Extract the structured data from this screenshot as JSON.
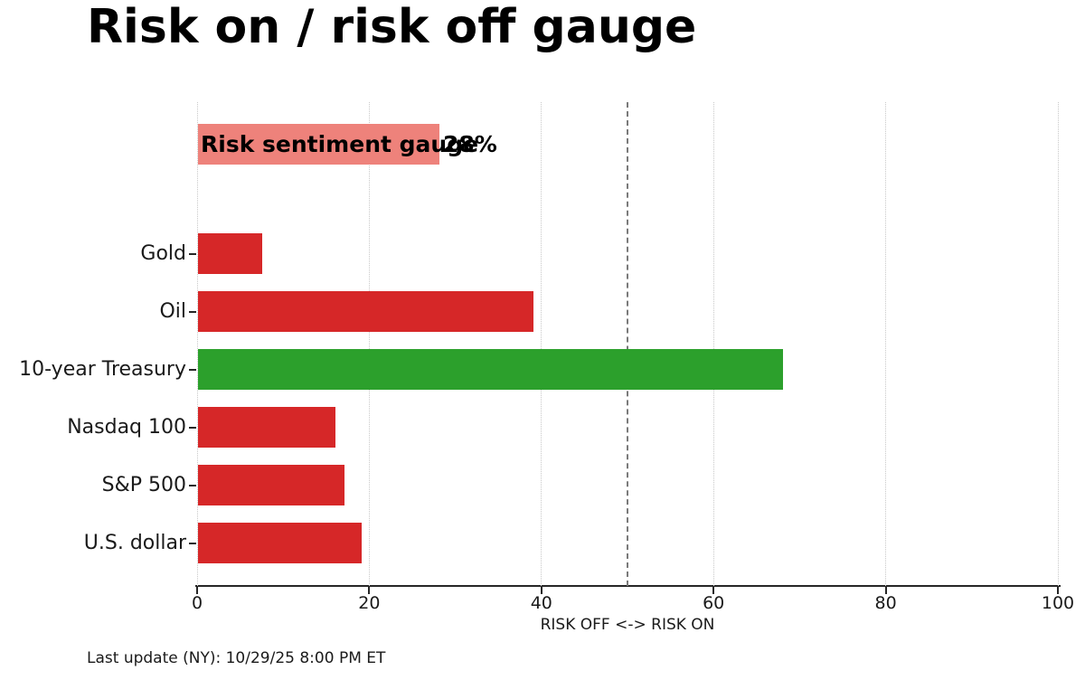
{
  "page": {
    "footer": "Last update (NY): 10/29/25 8:00 PM ET"
  },
  "chart_data": {
    "type": "bar",
    "orientation": "horizontal",
    "title": "Risk on / risk off gauge",
    "xlabel": "RISK OFF <-> RISK ON",
    "xlim": [
      0,
      100
    ],
    "x_ticks": [
      0,
      20,
      40,
      60,
      80,
      100
    ],
    "grid": "vertical dotted gridlines at each x tick",
    "legend": null,
    "reference_line": {
      "x": 50,
      "style": "dashed",
      "color": "#7a7a7a"
    },
    "gauge_bar": {
      "label": "Risk sentiment gauge",
      "value": 28,
      "value_label": "28%",
      "color": "#ee827b"
    },
    "categories": [
      "Gold",
      "Oil",
      "10-year Treasury",
      "Nasdaq 100",
      "S&P 500",
      "U.S. dollar"
    ],
    "values": [
      7.5,
      39,
      68,
      16,
      17,
      19
    ],
    "bar_colors": [
      "#d62728",
      "#d62728",
      "#2ca02c",
      "#d62728",
      "#d62728",
      "#d62728"
    ],
    "colors": {
      "risk_off_red": "#d62728",
      "risk_on_green": "#2ca02c",
      "gauge_pink": "#ee827b",
      "axis": "#262626",
      "gridline": "#c9c9c9"
    }
  },
  "footer": {
    "last_update": "Last update (NY): 10/29/25 8:00 PM ET"
  }
}
